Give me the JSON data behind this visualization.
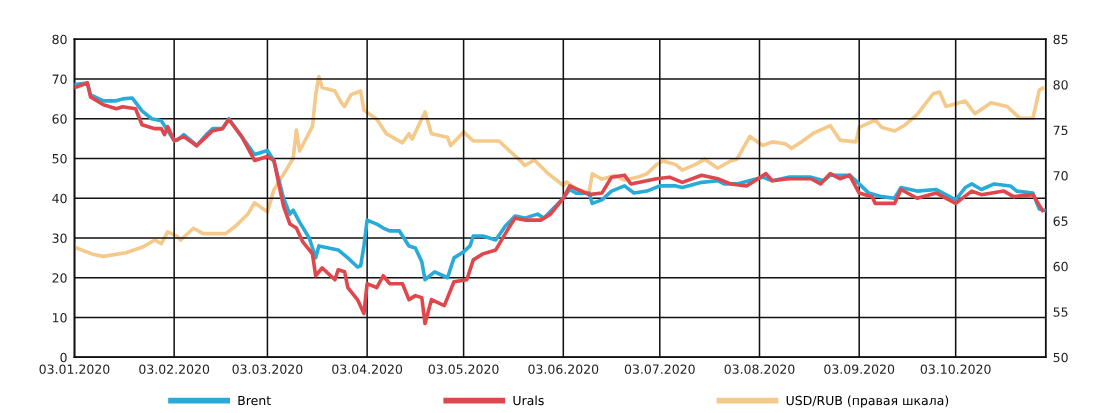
{
  "chart_data": {
    "type": "line",
    "xlim": [
      "2020-01-03",
      "2020-10-31"
    ],
    "xticks": [
      {
        "value": "2020-01-03",
        "label": "03.01.2020"
      },
      {
        "value": "2020-02-03",
        "label": "03.02.2020"
      },
      {
        "value": "2020-03-03",
        "label": "03.03.2020"
      },
      {
        "value": "2020-04-03",
        "label": "03.04.2020"
      },
      {
        "value": "2020-05-03",
        "label": "03.05.2020"
      },
      {
        "value": "2020-06-03",
        "label": "03.06.2020"
      },
      {
        "value": "2020-07-03",
        "label": "03.07.2020"
      },
      {
        "value": "2020-08-03",
        "label": "03.08.2020"
      },
      {
        "value": "2020-09-03",
        "label": "03.09.2020"
      },
      {
        "value": "2020-10-03",
        "label": "03.10.2020"
      }
    ],
    "ylim": [
      0,
      80
    ],
    "yticks": [
      0,
      10,
      20,
      30,
      40,
      50,
      60,
      70,
      80
    ],
    "y2lim": [
      50,
      85
    ],
    "y2ticks": [
      50,
      55,
      60,
      65,
      70,
      75,
      80,
      85
    ],
    "grid": true,
    "legend": "bottom",
    "marker": "none",
    "line_style": "solid",
    "series": [
      {
        "name": "Brent",
        "color": "#29abd9",
        "x": [
          "2020-01-03",
          "2020-01-07",
          "2020-01-08",
          "2020-01-12",
          "2020-01-16",
          "2020-01-18",
          "2020-01-21",
          "2020-01-24",
          "2020-01-27",
          "2020-01-30",
          "2020-02-03",
          "2020-02-04",
          "2020-02-06",
          "2020-02-09",
          "2020-02-10",
          "2020-02-13",
          "2020-02-15",
          "2020-02-18",
          "2020-02-20",
          "2020-02-24",
          "2020-02-28",
          "2020-03-01",
          "2020-03-03",
          "2020-03-05",
          "2020-03-08",
          "2020-03-10",
          "2020-03-11",
          "2020-03-13",
          "2020-03-16",
          "2020-03-18",
          "2020-03-19",
          "2020-03-25",
          "2020-03-28",
          "2020-03-31",
          "2020-04-01",
          "2020-04-02",
          "2020-04-03",
          "2020-04-06",
          "2020-04-08",
          "2020-04-10",
          "2020-04-13",
          "2020-04-16",
          "2020-04-18",
          "2020-04-20",
          "2020-04-21",
          "2020-04-24",
          "2020-04-28",
          "2020-04-30",
          "2020-05-03",
          "2020-05-05",
          "2020-05-06",
          "2020-05-09",
          "2020-05-13",
          "2020-05-16",
          "2020-05-19",
          "2020-05-22",
          "2020-05-26",
          "2020-05-28",
          "2020-06-03",
          "2020-06-05",
          "2020-06-07",
          "2020-06-11",
          "2020-06-12",
          "2020-06-15",
          "2020-06-18",
          "2020-06-22",
          "2020-06-25",
          "2020-06-29",
          "2020-07-03",
          "2020-07-08",
          "2020-07-10",
          "2020-07-16",
          "2020-07-21",
          "2020-07-23",
          "2020-07-27",
          "2020-08-04",
          "2020-08-07",
          "2020-08-12",
          "2020-08-19",
          "2020-08-23",
          "2020-08-25",
          "2020-08-31",
          "2020-09-03",
          "2020-09-06",
          "2020-09-10",
          "2020-09-14",
          "2020-09-16",
          "2020-09-21",
          "2020-09-27",
          "2020-10-03",
          "2020-10-06",
          "2020-10-08",
          "2020-10-11",
          "2020-10-15",
          "2020-10-20",
          "2020-10-22",
          "2020-10-27",
          "2020-10-29",
          "2020-10-31"
        ],
        "values": [
          68.6,
          69,
          66,
          64.5,
          64.5,
          65,
          65.2,
          62,
          60,
          59.5,
          54.5,
          54.6,
          56,
          54,
          53.2,
          56,
          57.5,
          57.5,
          60,
          55.5,
          51,
          51.5,
          52,
          49.5,
          40,
          36,
          37,
          34,
          30,
          25,
          28,
          27,
          25,
          22.7,
          23,
          28,
          34.5,
          33.5,
          32.5,
          31.8,
          31.8,
          28,
          27.5,
          24,
          19.5,
          21.5,
          20,
          25,
          26.5,
          28,
          30.5,
          30.5,
          29.5,
          33,
          35.5,
          35,
          36,
          35,
          40,
          42.2,
          41.3,
          41.3,
          38.7,
          39.6,
          41.8,
          43.1,
          41.3,
          41.8,
          43.1,
          43.1,
          42.7,
          44,
          44.4,
          43.6,
          43.6,
          45.3,
          44.4,
          45.3,
          45.3,
          44.4,
          45.8,
          45.8,
          43.6,
          41.3,
          40.4,
          40,
          42.7,
          41.8,
          42.2,
          39.6,
          42.7,
          43.6,
          42.2,
          43.6,
          43.1,
          41.8,
          41.3,
          37.3,
          36.9
        ]
      },
      {
        "name": "Urals",
        "color": "#e0474c",
        "x": [
          "2020-01-03",
          "2020-01-07",
          "2020-01-08",
          "2020-01-12",
          "2020-01-16",
          "2020-01-18",
          "2020-01-22",
          "2020-01-24",
          "2020-01-28",
          "2020-01-30",
          "2020-01-31",
          "2020-02-01",
          "2020-02-03",
          "2020-02-06",
          "2020-02-10",
          "2020-02-13",
          "2020-02-15",
          "2020-02-18",
          "2020-02-20",
          "2020-02-24",
          "2020-02-28",
          "2020-03-03",
          "2020-03-05",
          "2020-03-08",
          "2020-03-10",
          "2020-03-12",
          "2020-03-14",
          "2020-03-17",
          "2020-03-18",
          "2020-03-20",
          "2020-03-24",
          "2020-03-25",
          "2020-03-27",
          "2020-03-28",
          "2020-03-31",
          "2020-04-02",
          "2020-04-03",
          "2020-04-06",
          "2020-04-08",
          "2020-04-10",
          "2020-04-14",
          "2020-04-16",
          "2020-04-18",
          "2020-04-20",
          "2020-04-21",
          "2020-04-23",
          "2020-04-27",
          "2020-04-30",
          "2020-05-04",
          "2020-05-06",
          "2020-05-09",
          "2020-05-13",
          "2020-05-17",
          "2020-05-19",
          "2020-05-22",
          "2020-05-27",
          "2020-05-30",
          "2020-06-03",
          "2020-06-05",
          "2020-06-11",
          "2020-06-15",
          "2020-06-18",
          "2020-06-22",
          "2020-06-24",
          "2020-07-02",
          "2020-07-06",
          "2020-07-10",
          "2020-07-16",
          "2020-07-21",
          "2020-07-25",
          "2020-07-30",
          "2020-08-05",
          "2020-08-07",
          "2020-08-12",
          "2020-08-19",
          "2020-08-22",
          "2020-08-25",
          "2020-08-28",
          "2020-08-31",
          "2020-09-03",
          "2020-09-07",
          "2020-09-08",
          "2020-09-14",
          "2020-09-16",
          "2020-09-21",
          "2020-09-27",
          "2020-10-03",
          "2020-10-08",
          "2020-10-11",
          "2020-10-18",
          "2020-10-21",
          "2020-10-27",
          "2020-10-30"
        ],
        "values": [
          67.8,
          69,
          65.5,
          63.5,
          62.5,
          63,
          62.5,
          58.5,
          57.5,
          57.5,
          56,
          58,
          54.5,
          55.5,
          53.2,
          55.5,
          57,
          57.5,
          59.8,
          55.5,
          49.5,
          50.5,
          49.5,
          38,
          33.5,
          32.5,
          29,
          26,
          20.5,
          22.5,
          19.5,
          22,
          21.5,
          17.5,
          14.5,
          11,
          18.5,
          17.5,
          20.5,
          18.5,
          18.5,
          14.5,
          15.5,
          15,
          8.5,
          14.5,
          13,
          19,
          19.5,
          24.5,
          26,
          27,
          32.5,
          35,
          34.5,
          34.5,
          36,
          40,
          43.1,
          40.9,
          41.3,
          45.3,
          45.8,
          43.6,
          44.9,
          45.3,
          44,
          45.8,
          44.9,
          43.6,
          43.1,
          46.2,
          44.4,
          44.9,
          44.9,
          43.6,
          46.2,
          44.9,
          45.8,
          41.3,
          40.4,
          38.7,
          38.7,
          42.2,
          40,
          41.3,
          38.7,
          41.8,
          40.9,
          41.8,
          40.4,
          40.9,
          36.9
        ]
      },
      {
        "name": "USD/RUB (правая шкала)",
        "color": "#f5c98a",
        "axis": "y2",
        "x": [
          "2020-01-03",
          "2020-01-09",
          "2020-01-12",
          "2020-01-19",
          "2020-01-24",
          "2020-01-28",
          "2020-01-30",
          "2020-02-01",
          "2020-02-04",
          "2020-02-05",
          "2020-02-09",
          "2020-02-12",
          "2020-02-19",
          "2020-02-22",
          "2020-02-26",
          "2020-02-28",
          "2020-03-03",
          "2020-03-05",
          "2020-03-09",
          "2020-03-11",
          "2020-03-12",
          "2020-03-13",
          "2020-03-17",
          "2020-03-18",
          "2020-03-19",
          "2020-03-20",
          "2020-03-24",
          "2020-03-26",
          "2020-03-27",
          "2020-03-29",
          "2020-04-01",
          "2020-04-02",
          "2020-04-06",
          "2020-04-09",
          "2020-04-14",
          "2020-04-16",
          "2020-04-17",
          "2020-04-21",
          "2020-04-23",
          "2020-04-28",
          "2020-04-29",
          "2020-05-03",
          "2020-05-06",
          "2020-05-14",
          "2020-05-21",
          "2020-05-22",
          "2020-05-25",
          "2020-05-29",
          "2020-06-03",
          "2020-06-04",
          "2020-06-07",
          "2020-06-11",
          "2020-06-12",
          "2020-06-15",
          "2020-06-19",
          "2020-06-22",
          "2020-06-26",
          "2020-06-29",
          "2020-07-02",
          "2020-07-04",
          "2020-07-08",
          "2020-07-10",
          "2020-07-14",
          "2020-07-17",
          "2020-07-21",
          "2020-07-25",
          "2020-07-27",
          "2020-07-31",
          "2020-08-04",
          "2020-08-07",
          "2020-08-11",
          "2020-08-13",
          "2020-08-16",
          "2020-08-20",
          "2020-08-25",
          "2020-08-28",
          "2020-09-02",
          "2020-09-03",
          "2020-09-08",
          "2020-09-10",
          "2020-09-14",
          "2020-09-17",
          "2020-09-21",
          "2020-09-26",
          "2020-09-28",
          "2020-09-30",
          "2020-10-06",
          "2020-10-09",
          "2020-10-14",
          "2020-10-19",
          "2020-10-23",
          "2020-10-27",
          "2020-10-29",
          "2020-10-30"
        ],
        "values": [
          62.1,
          61.3,
          61.1,
          61.5,
          62.1,
          62.9,
          62.5,
          63.8,
          63.3,
          62.9,
          64.2,
          63.6,
          63.6,
          64.4,
          65.8,
          67,
          66,
          68.4,
          70.7,
          71.9,
          75,
          72.7,
          75.4,
          78.9,
          80.9,
          79.7,
          79.3,
          78,
          77.6,
          78.9,
          79.3,
          77.2,
          76.2,
          74.6,
          73.6,
          74.6,
          74,
          77,
          74.6,
          74.2,
          73.3,
          74.8,
          73.8,
          73.8,
          71.5,
          71.1,
          71.7,
          70.3,
          68.9,
          69.3,
          68.5,
          68.1,
          70.2,
          69.6,
          70,
          69.5,
          69.8,
          70.2,
          71.2,
          71.6,
          71.2,
          70.6,
          71.2,
          71.8,
          70.8,
          71.6,
          71.8,
          74.3,
          73.3,
          73.7,
          73.5,
          73,
          73.7,
          74.7,
          75.5,
          73.9,
          73.7,
          75.3,
          76.1,
          75.3,
          74.9,
          75.5,
          76.7,
          79,
          79.2,
          77.6,
          78.2,
          76.8,
          78,
          77.6,
          76.3,
          76.3,
          79.4,
          79.6
        ]
      }
    ]
  }
}
